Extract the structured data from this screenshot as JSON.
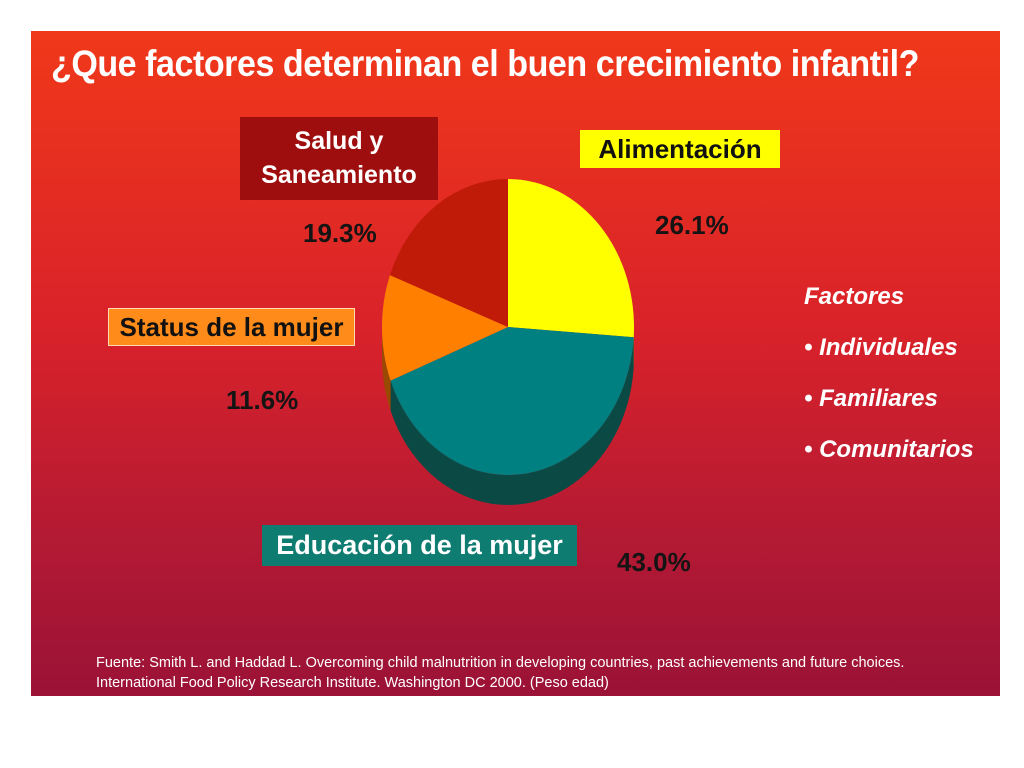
{
  "slide": {
    "title": "¿Que factores determinan el buen crecimiento infantil?",
    "factors_heading": "Factores",
    "factors": [
      "Individuales",
      "Familiares",
      "Comunitarios"
    ],
    "source_line1": "Fuente: Smith L. and Haddad L. Overcoming child malnutrition in developing countries, past achievements and future choices.",
    "source_line2": "International Food Policy Research Institute. Washington DC 2000. (Peso edad)"
  },
  "labels": {
    "salud_line1": "Salud y",
    "salud_line2": "Saneamiento",
    "alimentacion": "Alimentación",
    "status": "Status de la mujer",
    "educacion": "Educación de la mujer",
    "pct_salud": "19.3%",
    "pct_alimentacion": "26.1%",
    "pct_status": "11.6%",
    "pct_educacion": "43.0%"
  },
  "chart_data": {
    "type": "pie",
    "title": "¿Que factores determinan el buen crecimiento infantil?",
    "categories": [
      "Alimentación",
      "Educación de la mujer",
      "Status de la mujer",
      "Salud y Saneamiento"
    ],
    "values": [
      26.1,
      43.0,
      11.6,
      19.3
    ],
    "unit": "%",
    "colors": [
      "#ffff00",
      "#008080",
      "#ff8000",
      "#c01a08"
    ],
    "side_colors": [
      "#a8a800",
      "#0b4a44",
      "#9a4a00",
      "#6e0c05"
    ],
    "style": "3d"
  }
}
